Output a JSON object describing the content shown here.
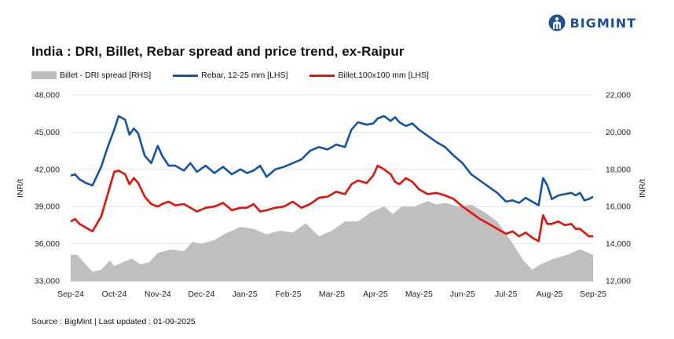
{
  "brand": {
    "name": "BIGMINT",
    "color": "#1d4f9b"
  },
  "title": "India : DRI, Billet, Rebar spread and price trend, ex-Raipur",
  "footer": "Source : BigMint | Last updated : 01-09-2025",
  "chart_data": {
    "type": "line",
    "title": "India : DRI, Billet, Rebar spread and price trend, ex-Raipur",
    "ylabel_left": "INR/t",
    "ylabel_right": "INR/t",
    "ylim_left": [
      33000,
      48000
    ],
    "ylim_right": [
      12000,
      22000
    ],
    "yticks_left": [
      "33,000",
      "36,000",
      "39,000",
      "42,000",
      "45,000",
      "48,000"
    ],
    "yticks_right": [
      "12,000",
      "14,000",
      "16,000",
      "18,000",
      "20,000",
      "22,000"
    ],
    "x_range": [
      0,
      12
    ],
    "x_ticks": [
      "Sep-24",
      "Oct-24",
      "Nov-24",
      "Dec-24",
      "Jan-25",
      "Feb-25",
      "Mar-25",
      "Apr-25",
      "May-25",
      "Jun-25",
      "Jul-25",
      "Aug-25",
      "Sep-25"
    ],
    "grid": true,
    "legend_position": "top-left",
    "series": [
      {
        "name": "Billet - DRI spread  [RHS]",
        "type": "area",
        "axis": "right",
        "color": "#bfbfbf",
        "x": [
          0,
          0.15,
          0.3,
          0.5,
          0.7,
          0.9,
          1.0,
          1.2,
          1.4,
          1.6,
          1.8,
          2.0,
          2.3,
          2.6,
          2.8,
          3.0,
          3.3,
          3.6,
          3.9,
          4.2,
          4.5,
          4.8,
          5.1,
          5.4,
          5.7,
          6.0,
          6.3,
          6.6,
          6.9,
          7.2,
          7.4,
          7.6,
          7.9,
          8.2,
          8.4,
          8.6,
          8.9,
          9.2,
          9.5,
          9.8,
          10.1,
          10.4,
          10.6,
          10.8,
          11.1,
          11.4,
          11.7,
          12.0
        ],
        "values": [
          13.4,
          13.4,
          13.0,
          12.5,
          12.6,
          13.1,
          12.8,
          13.0,
          13.2,
          12.9,
          13.0,
          13.5,
          13.7,
          13.6,
          14.1,
          14.0,
          14.2,
          14.6,
          14.9,
          14.8,
          14.5,
          14.7,
          14.6,
          15.1,
          14.4,
          14.7,
          15.2,
          15.2,
          15.7,
          16.0,
          15.6,
          16.0,
          16.0,
          16.3,
          16.1,
          16.2,
          16.0,
          16.1,
          15.7,
          15.2,
          14.2,
          13.1,
          12.6,
          12.9,
          13.2,
          13.4,
          13.7,
          13.4
        ]
      },
      {
        "name": "Rebar, 12-25 mm [LHS]",
        "type": "line",
        "axis": "left",
        "color": "#1753a3",
        "x": [
          0,
          0.1,
          0.2,
          0.35,
          0.5,
          0.7,
          0.85,
          1.0,
          1.1,
          1.25,
          1.35,
          1.45,
          1.55,
          1.7,
          1.85,
          2.0,
          2.1,
          2.25,
          2.4,
          2.6,
          2.75,
          2.9,
          3.1,
          3.3,
          3.5,
          3.7,
          3.9,
          4.05,
          4.2,
          4.35,
          4.5,
          4.7,
          4.9,
          5.1,
          5.3,
          5.5,
          5.7,
          5.9,
          6.1,
          6.3,
          6.45,
          6.6,
          6.8,
          6.95,
          7.05,
          7.2,
          7.35,
          7.45,
          7.55,
          7.7,
          7.85,
          8.0,
          8.2,
          8.4,
          8.6,
          8.8,
          9.0,
          9.2,
          9.4,
          9.6,
          9.8,
          10.0,
          10.15,
          10.3,
          10.45,
          10.6,
          10.75,
          10.85,
          10.95,
          11.05,
          11.2,
          11.35,
          11.5,
          11.6,
          11.7,
          11.8,
          11.9,
          12.0
        ],
        "values": [
          41.5,
          41.6,
          41.2,
          40.9,
          40.7,
          42.2,
          43.8,
          45.2,
          46.3,
          46.0,
          44.8,
          45.3,
          44.9,
          43.1,
          42.5,
          43.9,
          43.1,
          42.3,
          42.3,
          41.9,
          42.5,
          41.8,
          42.3,
          41.7,
          42.2,
          41.6,
          42.0,
          41.7,
          41.9,
          42.3,
          41.4,
          42.0,
          42.2,
          42.5,
          42.8,
          43.5,
          43.8,
          43.6,
          44.0,
          43.8,
          45.2,
          45.8,
          45.6,
          45.7,
          46.1,
          46.3,
          45.9,
          46.2,
          45.8,
          45.5,
          45.7,
          45.2,
          44.7,
          44.2,
          43.8,
          43.1,
          42.5,
          41.6,
          41.1,
          40.6,
          40.1,
          39.4,
          39.5,
          39.3,
          39.7,
          39.4,
          39.1,
          41.3,
          40.7,
          39.6,
          39.9,
          40.0,
          40.1,
          39.9,
          40.1,
          39.5,
          39.6,
          39.8
        ]
      },
      {
        "name": "Billet,100x100 mm [LHS]",
        "type": "line",
        "axis": "left",
        "color": "#e3120b",
        "x": [
          0,
          0.1,
          0.2,
          0.35,
          0.5,
          0.7,
          0.85,
          1.0,
          1.1,
          1.25,
          1.35,
          1.45,
          1.55,
          1.7,
          1.85,
          2.0,
          2.1,
          2.25,
          2.4,
          2.6,
          2.75,
          2.9,
          3.1,
          3.3,
          3.5,
          3.7,
          3.9,
          4.05,
          4.2,
          4.35,
          4.5,
          4.7,
          4.9,
          5.1,
          5.3,
          5.5,
          5.7,
          5.9,
          6.1,
          6.3,
          6.45,
          6.6,
          6.8,
          6.95,
          7.05,
          7.2,
          7.35,
          7.45,
          7.55,
          7.7,
          7.85,
          8.0,
          8.2,
          8.4,
          8.6,
          8.8,
          9.0,
          9.2,
          9.4,
          9.6,
          9.8,
          10.0,
          10.15,
          10.3,
          10.45,
          10.6,
          10.75,
          10.85,
          10.95,
          11.05,
          11.2,
          11.35,
          11.5,
          11.6,
          11.7,
          11.8,
          11.9,
          12.0
        ],
        "values": [
          37.8,
          38.0,
          37.6,
          37.3,
          37.0,
          38.2,
          40.0,
          41.8,
          41.9,
          41.6,
          40.8,
          41.3,
          40.9,
          39.8,
          39.2,
          39.0,
          39.2,
          39.4,
          39.1,
          39.2,
          38.9,
          38.6,
          38.9,
          39.0,
          39.3,
          38.7,
          38.9,
          38.9,
          39.2,
          38.6,
          38.7,
          38.9,
          39.0,
          39.4,
          38.9,
          39.2,
          39.7,
          39.8,
          40.2,
          40.0,
          40.8,
          41.1,
          40.9,
          41.5,
          42.3,
          42.0,
          41.6,
          41.0,
          40.8,
          41.3,
          41.0,
          40.4,
          40.0,
          40.1,
          39.9,
          39.6,
          39.0,
          38.5,
          38.0,
          37.6,
          37.2,
          36.8,
          37.0,
          36.6,
          36.9,
          36.5,
          36.2,
          38.3,
          37.6,
          37.6,
          37.8,
          37.5,
          37.6,
          37.2,
          37.2,
          36.9,
          36.6,
          36.6
        ]
      }
    ]
  }
}
